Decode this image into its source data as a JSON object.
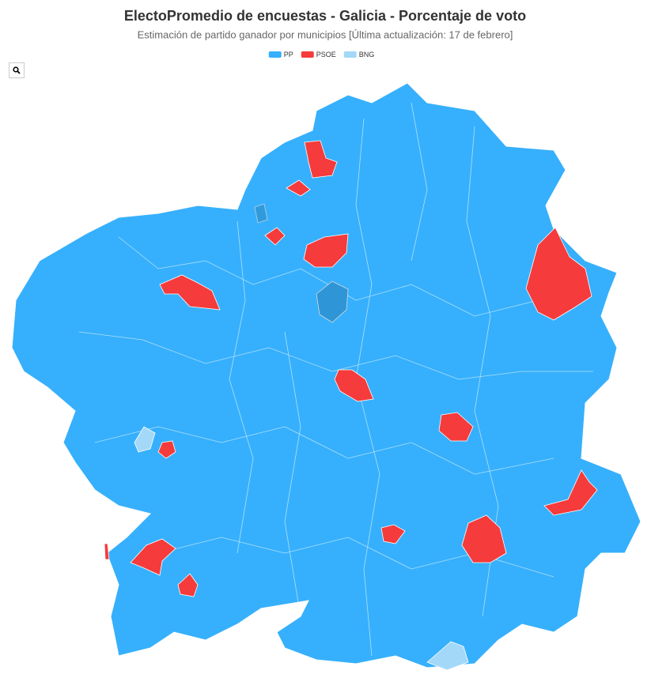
{
  "header": {
    "title": "ElectoPromedio de encuestas - Galicia - Porcentaje de voto",
    "subtitle": "Estimación de partido ganador por municipios [Última actualización: 17 de febrero]"
  },
  "legend": [
    {
      "name": "PP",
      "color": "#36b0fc"
    },
    {
      "name": "PSOE",
      "color": "#f53b3b"
    },
    {
      "name": "BNG",
      "color": "#a3d8f8"
    }
  ]
}
